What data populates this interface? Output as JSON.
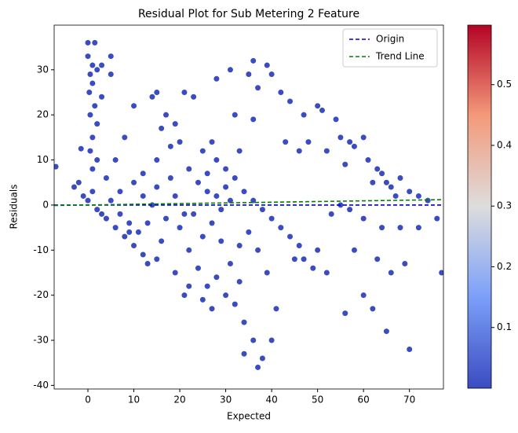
{
  "chart_data": {
    "type": "scatter",
    "title": "Residual Plot for Sub Metering 2 Feature",
    "x_label": "Expected",
    "y_label": "Residuals",
    "xlim": [
      -7.35,
      77.4
    ],
    "ylim": [
      -40.8,
      39.9
    ],
    "xticks": [
      0,
      10,
      20,
      30,
      40,
      50,
      60,
      70
    ],
    "yticks": [
      -40,
      -30,
      -20,
      -10,
      0,
      10,
      20,
      30
    ],
    "legend": "upper right",
    "points": {
      "color": "#3b4cc0",
      "x": [
        0,
        1.5,
        0,
        1,
        2,
        0.5,
        1,
        0.3,
        1.5,
        0.5,
        2,
        1,
        0.5,
        2,
        1,
        3,
        5,
        5,
        3,
        -1.5,
        -7,
        -2,
        -3,
        -1,
        0,
        2,
        4,
        6,
        8,
        10,
        12,
        13,
        15,
        11,
        7,
        9,
        5,
        7,
        10,
        12,
        15,
        10,
        14,
        15,
        17,
        19,
        21,
        23,
        18,
        20,
        22,
        25,
        27,
        28,
        30,
        24,
        26,
        28,
        30,
        32,
        34,
        36,
        38,
        40,
        42,
        44,
        46,
        45,
        20,
        22,
        24,
        26,
        28,
        30,
        32,
        34,
        36,
        37,
        38,
        34,
        40,
        41,
        33,
        31,
        29,
        19,
        21,
        17,
        14,
        19,
        23,
        27,
        35,
        37,
        39,
        28,
        31,
        32,
        35,
        36,
        36,
        37,
        39,
        40,
        42,
        44,
        43,
        46,
        48,
        47,
        50,
        51,
        52,
        54,
        55,
        56,
        57,
        58,
        60,
        61,
        62,
        63,
        64,
        65,
        66,
        67,
        68,
        70,
        72,
        74,
        76,
        77,
        70,
        65,
        62,
        60,
        56,
        58,
        63,
        66,
        69,
        72,
        68,
        64,
        60,
        57,
        55,
        53,
        50,
        49,
        47,
        52,
        22,
        25,
        27,
        16,
        13,
        33,
        26,
        29,
        31,
        18,
        15,
        12,
        25,
        21,
        33,
        6,
        4,
        3,
        1,
        8,
        9,
        16
      ],
      "values": [
        36,
        36,
        33,
        31,
        30,
        29,
        27,
        25,
        22,
        20,
        18,
        15,
        12,
        10,
        8,
        31,
        33,
        29,
        24,
        12.5,
        8.5,
        5,
        4,
        2,
        1,
        -1,
        -3,
        -5,
        -7,
        -9,
        -11,
        -13,
        -12,
        -6,
        -2,
        -4,
        1,
        3,
        5,
        7,
        10,
        22,
        24,
        25,
        20,
        18,
        25,
        24,
        13,
        14,
        8,
        12,
        14,
        10,
        8,
        5,
        3,
        2,
        4,
        6,
        3,
        1,
        -1,
        -3,
        -5,
        -7,
        -9,
        -12,
        -5,
        -10,
        -14,
        -18,
        -16,
        -20,
        -22,
        -26,
        -30,
        -36,
        -34,
        -33,
        -30,
        -23,
        -17,
        -13,
        -8,
        -15,
        -20,
        -3,
        0,
        2,
        -2,
        -4,
        -6,
        -10,
        -15,
        28,
        30,
        20,
        29,
        32,
        19,
        26,
        31,
        29,
        25,
        23,
        14,
        12,
        14,
        20,
        22,
        21,
        12,
        19,
        15,
        9,
        14,
        13,
        15,
        10,
        5,
        8,
        7,
        5,
        4,
        2,
        6,
        3,
        2,
        1,
        -3,
        -15,
        -32,
        -28,
        -23,
        -20,
        -24,
        -10,
        -12,
        -15,
        -13,
        -5,
        -5,
        -5,
        -3,
        -1,
        0,
        -2,
        -10,
        -14,
        -12,
        -15,
        -18,
        -21,
        -23,
        -8,
        -4,
        -9,
        7,
        -1,
        1,
        6,
        4,
        2,
        -7,
        -2,
        12,
        10,
        6,
        -2,
        3,
        15,
        -6,
        17
      ]
    },
    "series": [
      {
        "name": "Origin",
        "color": "#0000cc",
        "x": [
          -7.35,
          77.4
        ],
        "values": [
          0,
          0
        ]
      },
      {
        "name": "Trend Line",
        "color": "#008000",
        "x": [
          -7.35,
          77.4
        ],
        "values": [
          -0.1,
          1.2
        ]
      }
    ],
    "colorbar": {
      "lim": [
        0.0,
        0.598
      ],
      "ticks": [
        0.1,
        0.2,
        0.3,
        0.4,
        0.5
      ]
    }
  }
}
